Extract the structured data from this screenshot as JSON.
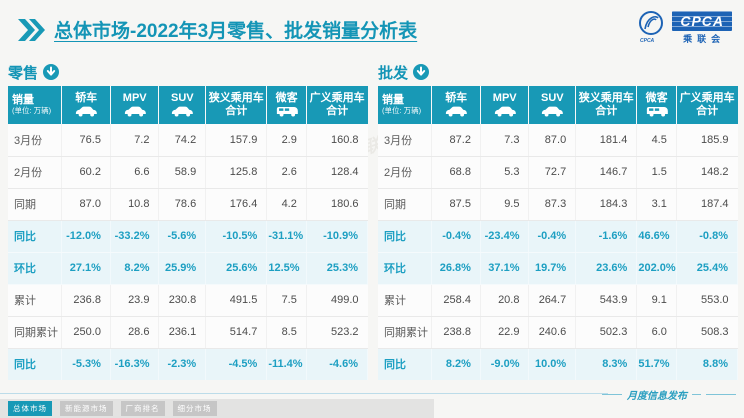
{
  "header": {
    "title": "总体市场-2022年3月零售、批发销量分析表",
    "logo": {
      "name": "CPCA",
      "cn": "乘联会",
      "emblem": "CPCA"
    }
  },
  "table": {
    "unit_label": "销量",
    "unit_sub": "(单位: 万辆)",
    "columns": [
      {
        "id": "sedan",
        "label": "轿车",
        "icon": "car"
      },
      {
        "id": "mpv",
        "label": "MPV",
        "icon": "car"
      },
      {
        "id": "suv",
        "label": "SUV",
        "icon": "car"
      },
      {
        "id": "narrow-total",
        "label": "狭义乘用车",
        "label2": "合计"
      },
      {
        "id": "microvan",
        "label": "微客",
        "icon": "van"
      },
      {
        "id": "broad-total",
        "label": "广义乘用车",
        "label2": "合计"
      }
    ],
    "col_widths": [
      "15%",
      "13.5%",
      "13.5%",
      "13%",
      "17%",
      "11%",
      "17%"
    ],
    "row_labels": [
      "3月份",
      "2月份",
      "同期",
      "同比",
      "环比",
      "累计",
      "同期累计",
      "同比"
    ],
    "pct_rows": [
      3,
      4,
      7
    ]
  },
  "retail": {
    "section_label": "零售",
    "rows": [
      [
        "76.5",
        "7.2",
        "74.2",
        "157.9",
        "2.9",
        "160.8"
      ],
      [
        "60.2",
        "6.6",
        "58.9",
        "125.8",
        "2.6",
        "128.4"
      ],
      [
        "87.0",
        "10.8",
        "78.6",
        "176.4",
        "4.2",
        "180.6"
      ],
      [
        "-12.0%",
        "-33.2%",
        "-5.6%",
        "-10.5%",
        "-31.1%",
        "-10.9%"
      ],
      [
        "27.1%",
        "8.2%",
        "25.9%",
        "25.6%",
        "12.5%",
        "25.3%"
      ],
      [
        "236.8",
        "23.9",
        "230.8",
        "491.5",
        "7.5",
        "499.0"
      ],
      [
        "250.0",
        "28.6",
        "236.1",
        "514.7",
        "8.5",
        "523.2"
      ],
      [
        "-5.3%",
        "-16.3%",
        "-2.3%",
        "-4.5%",
        "-11.4%",
        "-4.6%"
      ]
    ]
  },
  "wholesale": {
    "section_label": "批发",
    "rows": [
      [
        "87.2",
        "7.3",
        "87.0",
        "181.4",
        "4.5",
        "185.9"
      ],
      [
        "68.8",
        "5.3",
        "72.7",
        "146.7",
        "1.5",
        "148.2"
      ],
      [
        "87.5",
        "9.5",
        "87.3",
        "184.3",
        "3.1",
        "187.4"
      ],
      [
        "-0.4%",
        "-23.4%",
        "-0.4%",
        "-1.6%",
        "46.6%",
        "-0.8%"
      ],
      [
        "26.8%",
        "37.1%",
        "19.7%",
        "23.6%",
        "202.0%",
        "25.4%"
      ],
      [
        "258.4",
        "20.8",
        "264.7",
        "543.9",
        "9.1",
        "553.0"
      ],
      [
        "238.8",
        "22.9",
        "240.6",
        "502.3",
        "6.0",
        "508.3"
      ],
      [
        "8.2%",
        "-9.0%",
        "10.0%",
        "8.3%",
        "51.7%",
        "8.8%"
      ]
    ]
  },
  "footer": {
    "release_label": "月度信息发布",
    "tabs": [
      {
        "id": "overall",
        "label": "总体市场",
        "active": true
      },
      {
        "id": "nev",
        "label": "新能源市场",
        "active": false
      },
      {
        "id": "oem-rank",
        "label": "厂商排名",
        "active": false
      },
      {
        "id": "segments",
        "label": "细分市场",
        "active": false
      }
    ]
  },
  "watermark": "CPCA 乘联会",
  "colors": {
    "teal_header": "#1899b6",
    "title_teal": "#1495b6",
    "pct_text": "#1d9fc2",
    "pct_row_bg": "#e9f5f9",
    "logo_blue": "#1d63b5"
  }
}
